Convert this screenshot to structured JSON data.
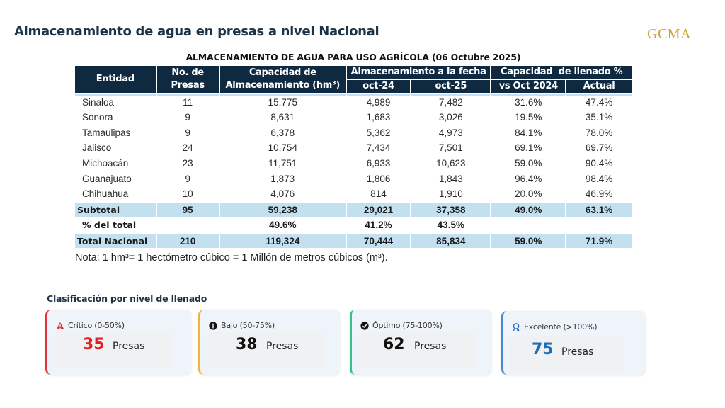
{
  "header": {
    "title": "Almacenamiento de agua en presas a nivel Nacional",
    "logo_text": "GCMA"
  },
  "table": {
    "caption": "ALMACENAMIENTO DE AGUA PARA USO AGRÍCOLA (06 Octubre 2025)",
    "headers": {
      "entidad": "Entidad",
      "presas_line1": "No. de",
      "presas_line2": "Presas",
      "capacidad_line1": "Capacidad de",
      "capacidad_line2": "Almacenamiento (hm³)",
      "almacenamiento_group": "Almacenamiento a la fecha",
      "oct24": "oct-24",
      "oct25": "oct-25",
      "llenado_group": "Capacidad  de llenado %",
      "vs_oct_2024": "vs Oct 2024",
      "actual": "Actual"
    },
    "rows": [
      {
        "entidad": "Sinaloa",
        "presas": "11",
        "capacidad": "15,775",
        "oct24": "4,989",
        "oct25": "7,482",
        "vs_oct_2024": "31.6%",
        "actual": "47.4%"
      },
      {
        "entidad": "Sonora",
        "presas": "9",
        "capacidad": "8,631",
        "oct24": "1,683",
        "oct25": "3,026",
        "vs_oct_2024": "19.5%",
        "actual": "35.1%"
      },
      {
        "entidad": "Tamaulipas",
        "presas": "9",
        "capacidad": "6,378",
        "oct24": "5,362",
        "oct25": "4,973",
        "vs_oct_2024": "84.1%",
        "actual": "78.0%"
      },
      {
        "entidad": "Jalisco",
        "presas": "24",
        "capacidad": "10,754",
        "oct24": "7,434",
        "oct25": "7,501",
        "vs_oct_2024": "69.1%",
        "actual": "69.7%"
      },
      {
        "entidad": "Michoacán",
        "presas": "23",
        "capacidad": "11,751",
        "oct24": "6,933",
        "oct25": "10,623",
        "vs_oct_2024": "59.0%",
        "actual": "90.4%"
      },
      {
        "entidad": "Guanajuato",
        "presas": "9",
        "capacidad": "1,873",
        "oct24": "1,806",
        "oct25": "1,843",
        "vs_oct_2024": "96.4%",
        "actual": "98.4%"
      },
      {
        "entidad": "Chihuahua",
        "presas": "10",
        "capacidad": "4,076",
        "oct24": "814",
        "oct25": "1,910",
        "vs_oct_2024": "20.0%",
        "actual": "46.9%"
      }
    ],
    "subtotal": {
      "entidad": "Subtotal",
      "presas": "95",
      "capacidad": "59,238",
      "oct24": "29,021",
      "oct25": "37,358",
      "vs_oct_2024": "49.0%",
      "actual": "63.1%"
    },
    "pct_total": {
      "entidad": "% del total",
      "presas": "",
      "capacidad": "49.6%",
      "oct24": "41.2%",
      "oct25": "43.5%",
      "vs_oct_2024": "",
      "actual": ""
    },
    "total_nacional": {
      "entidad": "Total Nacional",
      "presas": "210",
      "capacidad": "119,324",
      "oct24": "70,444",
      "oct25": "85,834",
      "vs_oct_2024": "59.0%",
      "actual": "71.9%"
    },
    "note": "Nota: 1 hm³= 1 hectómetro cúbico = 1 Millón de metros cúbicos (m³)."
  },
  "classification": {
    "title": "Clasificación por nivel de llenado",
    "cards": [
      {
        "icon": "warning-triangle-icon",
        "label": "Crítico (0-50%)",
        "count": "35",
        "unit": "Presas",
        "accent": "#e0343a",
        "count_color": "#e01f26"
      },
      {
        "icon": "exclamation-circle-icon",
        "label": "Bajo (50-75%)",
        "count": "38",
        "unit": "Presas",
        "accent": "#f0b43c",
        "count_color": "#111111"
      },
      {
        "icon": "check-circle-icon",
        "label": "Óptimo (75-100%)",
        "count": "62",
        "unit": "Presas",
        "accent": "#3cbf8a",
        "count_color": "#111111"
      },
      {
        "icon": "award-ribbon-icon",
        "label": "Excelente (>100%)",
        "count": "75",
        "unit": "Presas",
        "accent": "#4a86d6",
        "count_color": "#1f6fb8"
      }
    ]
  }
}
